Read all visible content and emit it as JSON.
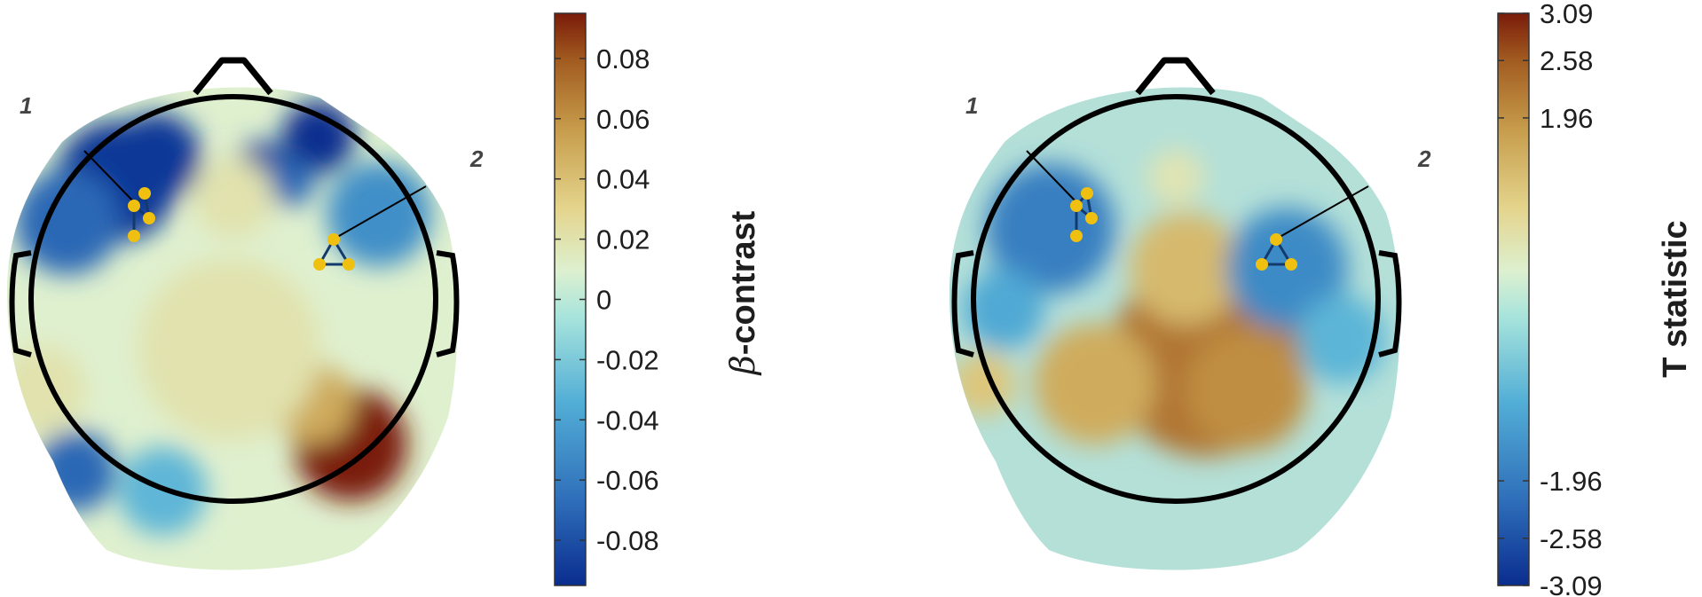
{
  "chart_data": [
    {
      "type": "heatmap",
      "colorbar": {
        "label_symbol": "β",
        "label_text": "-contrast",
        "range": [
          -0.095,
          0.095
        ],
        "ticks": [
          -0.08,
          -0.06,
          -0.04,
          -0.02,
          0,
          0.02,
          0.04,
          0.06,
          0.08
        ],
        "tick_labels": [
          "-0.08",
          "-0.06",
          "-0.04",
          "-0.02",
          "0",
          "0.02",
          "0.04",
          "0.06",
          "0.08"
        ]
      },
      "cluster_labels": [
        "1",
        "2"
      ],
      "blobs": [
        {
          "x": -0.58,
          "y": -0.58,
          "r": 0.3,
          "v": -0.09
        },
        {
          "x": -0.38,
          "y": -0.7,
          "r": 0.22,
          "v": -0.09
        },
        {
          "x": -0.82,
          "y": -0.38,
          "r": 0.26,
          "v": -0.07
        },
        {
          "x": 0.42,
          "y": -0.8,
          "r": 0.18,
          "v": -0.095
        },
        {
          "x": 0.14,
          "y": -0.64,
          "r": 0.14,
          "v": -0.085
        },
        {
          "x": 0.28,
          "y": -0.58,
          "r": 0.12,
          "v": -0.07
        },
        {
          "x": 0.72,
          "y": -0.42,
          "r": 0.26,
          "v": -0.05
        },
        {
          "x": -0.78,
          "y": 0.85,
          "r": 0.2,
          "v": -0.07
        },
        {
          "x": -0.35,
          "y": 0.95,
          "r": 0.22,
          "v": -0.03
        },
        {
          "x": 0.58,
          "y": 0.72,
          "r": 0.28,
          "v": 0.095
        },
        {
          "x": 0.4,
          "y": 0.52,
          "r": 0.2,
          "v": 0.05
        },
        {
          "x": -0.02,
          "y": 0.25,
          "r": 0.45,
          "v": 0.02
        },
        {
          "x": 0.0,
          "y": -0.5,
          "r": 0.2,
          "v": 0.02
        },
        {
          "x": -0.95,
          "y": 0.45,
          "r": 0.22,
          "v": 0.02
        }
      ]
    },
    {
      "type": "heatmap",
      "colorbar": {
        "label_text": "T statistic",
        "range": [
          -3.09,
          3.09
        ],
        "ticks": [
          -3.09,
          -2.58,
          -1.96,
          1.96,
          2.58,
          3.09
        ],
        "tick_labels": [
          "-3.09",
          "-2.58",
          "-1.96",
          "1.96",
          "2.58",
          "3.09"
        ]
      },
      "cluster_labels": [
        "1",
        "2"
      ],
      "blobs": [
        {
          "x": 0.15,
          "y": 0.3,
          "r": 0.48,
          "v": 2.3
        },
        {
          "x": 0.05,
          "y": -0.15,
          "r": 0.28,
          "v": 1.4
        },
        {
          "x": -0.4,
          "y": 0.42,
          "r": 0.3,
          "v": 1.6
        },
        {
          "x": 0.35,
          "y": 0.45,
          "r": 0.3,
          "v": 2.0
        },
        {
          "x": -0.62,
          "y": -0.35,
          "r": 0.32,
          "v": -1.9
        },
        {
          "x": 0.55,
          "y": -0.15,
          "r": 0.3,
          "v": -1.7
        },
        {
          "x": 0.82,
          "y": 0.2,
          "r": 0.22,
          "v": -1.0
        },
        {
          "x": -0.85,
          "y": 0.05,
          "r": 0.2,
          "v": -1.2
        },
        {
          "x": -0.95,
          "y": 0.42,
          "r": 0.16,
          "v": 1.2
        },
        {
          "x": 0.0,
          "y": -0.6,
          "r": 0.14,
          "v": 0.6
        }
      ]
    }
  ]
}
